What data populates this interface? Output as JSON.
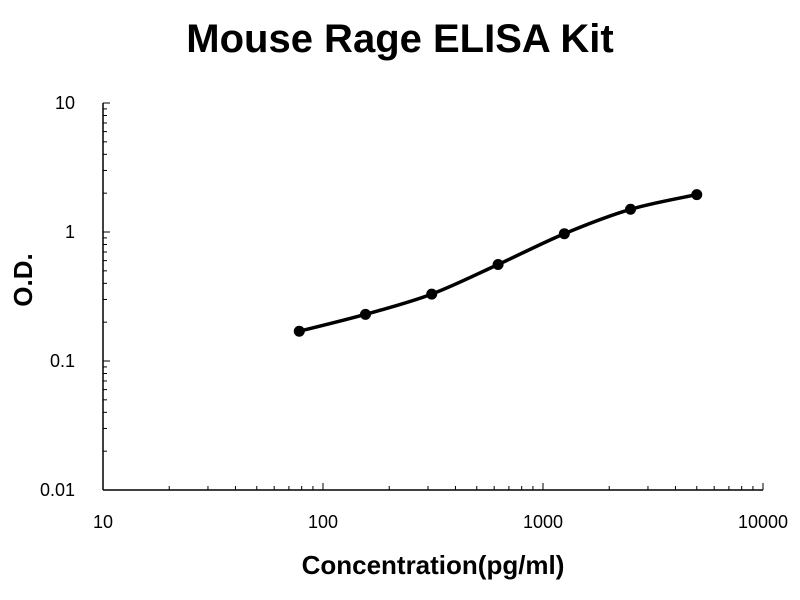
{
  "chart_data": {
    "type": "line",
    "title": "Mouse Rage ELISA Kit",
    "xlabel": "Concentration(pg/ml)",
    "ylabel": "O.D.",
    "x_scale": "log",
    "y_scale": "log",
    "xlim": [
      10,
      10000
    ],
    "ylim": [
      0.01,
      10
    ],
    "x_ticks": [
      10,
      100,
      1000,
      10000
    ],
    "x_tick_labels": [
      "10",
      "100",
      "1000",
      "10000"
    ],
    "y_ticks": [
      0.01,
      0.1,
      1,
      10
    ],
    "y_tick_labels": [
      "0.01",
      "0.1",
      "1",
      "10"
    ],
    "grid": false,
    "legend": "none",
    "series": [
      {
        "x": [
          78,
          156,
          312,
          625,
          1250,
          2500,
          5000
        ],
        "y": [
          0.17,
          0.23,
          0.33,
          0.56,
          0.97,
          1.5,
          1.95
        ],
        "color": "#000000",
        "marker": "circle"
      }
    ]
  }
}
